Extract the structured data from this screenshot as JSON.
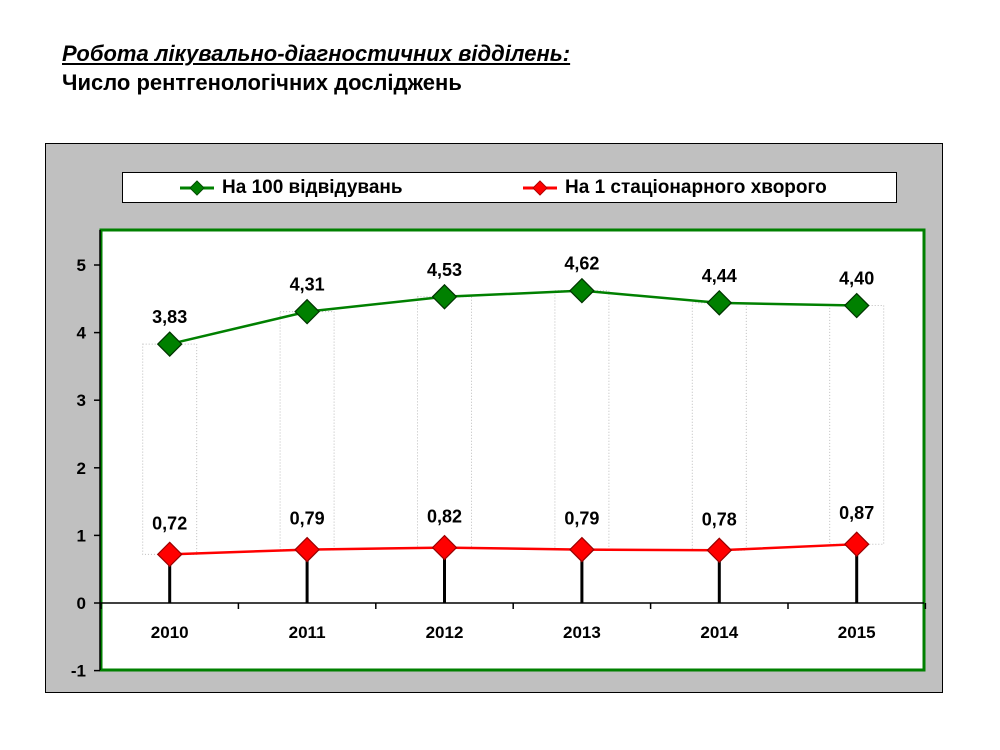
{
  "heading": {
    "title": "Робота лікувально-діагностичних відділень:",
    "subtitle": "Число рентгенологічних досліджень"
  },
  "colors": {
    "frame_bg": "#c0c0c0",
    "plot_border": "#008000",
    "series_green": "#008000",
    "series_red": "#ff0000"
  },
  "chart_data": {
    "type": "line",
    "categories": [
      "2010",
      "2011",
      "2012",
      "2013",
      "2014",
      "2015"
    ],
    "series": [
      {
        "name": "На 100 відвідувань",
        "color": "#008000",
        "marker": "diamond",
        "values": [
          3.83,
          4.31,
          4.53,
          4.62,
          4.44,
          4.4
        ],
        "labels": [
          "3,83",
          "4,31",
          "4,53",
          "4,62",
          "4,44",
          "4,40"
        ]
      },
      {
        "name": "На 1 стаціонарного хворого",
        "color": "#ff0000",
        "marker": "diamond",
        "values": [
          0.72,
          0.79,
          0.82,
          0.79,
          0.78,
          0.87
        ],
        "labels": [
          "0,72",
          "0,79",
          "0,82",
          "0,79",
          "0,78",
          "0,87"
        ]
      }
    ],
    "ylim": [
      -1,
      5.5
    ],
    "yticks": [
      -1,
      0,
      1,
      2,
      3,
      4,
      5
    ],
    "ytick_labels": [
      "-1",
      "0",
      "1",
      "2",
      "3",
      "4",
      "5"
    ],
    "xlabel": "",
    "ylabel": "",
    "grid": false,
    "legend_position": "top"
  }
}
